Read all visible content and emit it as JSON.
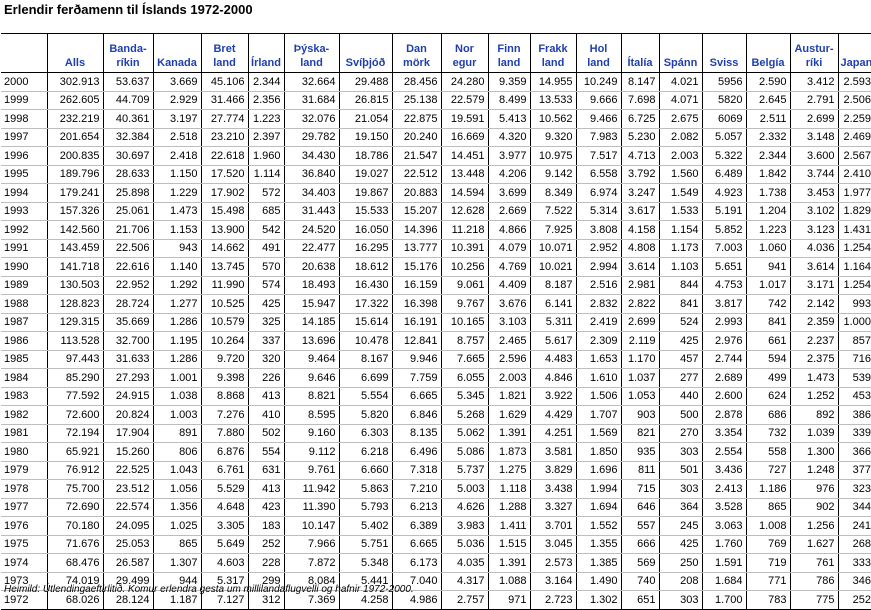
{
  "title": "Erlendir ferðamenn til Íslands 1972-2000",
  "columns": [
    {
      "l1": "",
      "l2": ""
    },
    {
      "l1": "",
      "l2": "Alls"
    },
    {
      "l1": "Banda-",
      "l2": "ríkin"
    },
    {
      "l1": "",
      "l2": "Kanada"
    },
    {
      "l1": "Bret",
      "l2": "land"
    },
    {
      "l1": "",
      "l2": "Írland"
    },
    {
      "l1": "Þýska-",
      "l2": "land"
    },
    {
      "l1": "",
      "l2": "Svíþjóð"
    },
    {
      "l1": "Dan",
      "l2": "mörk"
    },
    {
      "l1": "Nor",
      "l2": "egur"
    },
    {
      "l1": "Finn",
      "l2": "land"
    },
    {
      "l1": "Frakk",
      "l2": "land"
    },
    {
      "l1": "Hol",
      "l2": "land"
    },
    {
      "l1": "",
      "l2": "Ítalía"
    },
    {
      "l1": "",
      "l2": "Spánn"
    },
    {
      "l1": "",
      "l2": "Sviss"
    },
    {
      "l1": "",
      "l2": "Belgía"
    },
    {
      "l1": "Austur-",
      "l2": "ríki"
    },
    {
      "l1": "",
      "l2": "Japan"
    }
  ],
  "rows": [
    [
      "2000",
      "302.913",
      "53.637",
      "3.669",
      "45.106",
      "2.344",
      "32.664",
      "29.488",
      "28.456",
      "24.280",
      "9.359",
      "14.955",
      "10.249",
      "8.147",
      "4.021",
      "5956",
      "2.590",
      "3.412",
      "2.593"
    ],
    [
      "1999",
      "262.605",
      "44.709",
      "2.929",
      "31.466",
      "2.356",
      "31.684",
      "26.815",
      "25.138",
      "22.579",
      "8.499",
      "13.533",
      "9.666",
      "7.698",
      "4.071",
      "5820",
      "2.645",
      "2.791",
      "2.506"
    ],
    [
      "1998",
      "232.219",
      "40.361",
      "3.197",
      "27.774",
      "1.223",
      "32.076",
      "21.054",
      "22.875",
      "19.591",
      "5.413",
      "10.562",
      "9.466",
      "6.725",
      "2.675",
      "6069",
      "2.511",
      "2.699",
      "2.259"
    ],
    [
      "1997",
      "201.654",
      "32.384",
      "2.518",
      "23.210",
      "2.397",
      "29.782",
      "19.150",
      "20.240",
      "16.669",
      "4.320",
      "9.320",
      "7.983",
      "5.230",
      "2.082",
      "5.057",
      "2.332",
      "3.148",
      "2.469"
    ],
    [
      "1996",
      "200.835",
      "30.697",
      "2.418",
      "22.618",
      "1.960",
      "34.430",
      "18.786",
      "21.547",
      "14.451",
      "3.977",
      "10.975",
      "7.517",
      "4.713",
      "2.003",
      "5.322",
      "2.344",
      "3.600",
      "2.567"
    ],
    [
      "1995",
      "189.796",
      "28.633",
      "1.150",
      "17.520",
      "1.114",
      "36.840",
      "19.027",
      "22.512",
      "13.448",
      "4.206",
      "9.142",
      "6.558",
      "3.792",
      "1.560",
      "6.489",
      "1.842",
      "3.744",
      "2.410"
    ],
    [
      "1994",
      "179.241",
      "25.898",
      "1.229",
      "17.902",
      "572",
      "34.403",
      "19.867",
      "20.883",
      "14.594",
      "3.699",
      "8.349",
      "6.974",
      "3.247",
      "1.549",
      "4.923",
      "1.738",
      "3.453",
      "1.977"
    ],
    [
      "1993",
      "157.326",
      "25.061",
      "1.473",
      "15.498",
      "685",
      "31.443",
      "15.533",
      "15.207",
      "12.628",
      "2.669",
      "7.522",
      "5.314",
      "3.617",
      "1.533",
      "5.191",
      "1.204",
      "3.102",
      "1.829"
    ],
    [
      "1992",
      "142.560",
      "21.706",
      "1.153",
      "13.900",
      "542",
      "24.520",
      "16.050",
      "14.396",
      "11.218",
      "4.866",
      "7.925",
      "3.808",
      "4.158",
      "1.154",
      "5.852",
      "1.223",
      "3.123",
      "1.431"
    ],
    [
      "1991",
      "143.459",
      "22.506",
      "943",
      "14.662",
      "491",
      "22.477",
      "16.295",
      "13.777",
      "10.391",
      "4.079",
      "10.071",
      "2.952",
      "4.808",
      "1.173",
      "7.003",
      "1.060",
      "4.036",
      "1.254"
    ],
    [
      "1990",
      "141.718",
      "22.616",
      "1.140",
      "13.745",
      "570",
      "20.638",
      "18.612",
      "15.176",
      "10.256",
      "4.769",
      "10.021",
      "2.994",
      "3.614",
      "1.103",
      "5.651",
      "941",
      "3.614",
      "1.164"
    ],
    [
      "1989",
      "130.503",
      "22.952",
      "1.292",
      "11.990",
      "574",
      "18.493",
      "16.430",
      "16.159",
      "9.061",
      "4.409",
      "8.187",
      "2.516",
      "2.981",
      "844",
      "4.753",
      "1.017",
      "3.171",
      "1.254"
    ],
    [
      "1988",
      "128.823",
      "28.724",
      "1.277",
      "10.525",
      "425",
      "15.947",
      "17.322",
      "16.398",
      "9.767",
      "3.676",
      "6.141",
      "2.832",
      "2.822",
      "841",
      "3.817",
      "742",
      "2.142",
      "993"
    ],
    [
      "1987",
      "129.315",
      "35.669",
      "1.286",
      "10.579",
      "325",
      "14.185",
      "15.614",
      "16.191",
      "10.165",
      "3.103",
      "5.311",
      "2.419",
      "2.699",
      "524",
      "2.993",
      "841",
      "2.359",
      "1.000"
    ],
    [
      "1986",
      "113.528",
      "32.700",
      "1.195",
      "10.264",
      "337",
      "13.696",
      "10.478",
      "12.841",
      "8.757",
      "2.465",
      "5.617",
      "2.309",
      "2.119",
      "425",
      "2.976",
      "661",
      "2.237",
      "857"
    ],
    [
      "1985",
      "97.443",
      "31.633",
      "1.286",
      "9.720",
      "320",
      "9.464",
      "8.167",
      "9.946",
      "7.665",
      "2.596",
      "4.483",
      "1.653",
      "1.170",
      "457",
      "2.744",
      "594",
      "2.375",
      "716"
    ],
    [
      "1984",
      "85.290",
      "27.293",
      "1.001",
      "9.398",
      "226",
      "9.646",
      "6.699",
      "7.759",
      "6.055",
      "2.003",
      "4.846",
      "1.610",
      "1.037",
      "277",
      "2.689",
      "499",
      "1.473",
      "539"
    ],
    [
      "1983",
      "77.592",
      "24.915",
      "1.038",
      "8.868",
      "413",
      "8.821",
      "5.554",
      "6.665",
      "5.345",
      "1.821",
      "3.922",
      "1.506",
      "1.053",
      "440",
      "2.600",
      "624",
      "1.252",
      "453"
    ],
    [
      "1982",
      "72.600",
      "20.824",
      "1.003",
      "7.276",
      "410",
      "8.595",
      "5.820",
      "6.846",
      "5.268",
      "1.629",
      "4.429",
      "1.707",
      "903",
      "500",
      "2.878",
      "686",
      "892",
      "386"
    ],
    [
      "1981",
      "72.194",
      "17.904",
      "891",
      "7.880",
      "502",
      "9.160",
      "6.303",
      "8.135",
      "5.062",
      "1.391",
      "4.251",
      "1.569",
      "821",
      "270",
      "3.354",
      "732",
      "1.039",
      "339"
    ],
    [
      "1980",
      "65.921",
      "15.260",
      "806",
      "6.876",
      "554",
      "9.112",
      "6.218",
      "6.496",
      "5.086",
      "1.873",
      "3.581",
      "1.850",
      "935",
      "303",
      "2.554",
      "558",
      "1.300",
      "366"
    ],
    [
      "1979",
      "76.912",
      "22.525",
      "1.043",
      "6.761",
      "631",
      "9.761",
      "6.660",
      "7.318",
      "5.737",
      "1.275",
      "3.829",
      "1.696",
      "811",
      "501",
      "3.436",
      "727",
      "1.248",
      "377"
    ],
    [
      "1978",
      "75.700",
      "23.512",
      "1.056",
      "5.529",
      "413",
      "11.942",
      "5.863",
      "7.210",
      "5.003",
      "1.118",
      "3.438",
      "1.994",
      "715",
      "303",
      "2.413",
      "1.186",
      "976",
      "323"
    ],
    [
      "1977",
      "72.690",
      "22.574",
      "1.356",
      "4.648",
      "423",
      "11.390",
      "5.793",
      "6.213",
      "4.626",
      "1.288",
      "3.327",
      "1.694",
      "646",
      "364",
      "3.528",
      "865",
      "902",
      "344"
    ],
    [
      "1976",
      "70.180",
      "24.095",
      "1.025",
      "3.305",
      "183",
      "10.147",
      "5.402",
      "6.389",
      "3.983",
      "1.411",
      "3.701",
      "1.552",
      "557",
      "245",
      "3.063",
      "1.008",
      "1.256",
      "241"
    ],
    [
      "1975",
      "71.676",
      "25.053",
      "865",
      "5.649",
      "252",
      "7.966",
      "5.751",
      "6.665",
      "5.036",
      "1.515",
      "3.045",
      "1.355",
      "666",
      "425",
      "1.760",
      "769",
      "1.627",
      "268"
    ],
    [
      "1974",
      "68.476",
      "26.587",
      "1.307",
      "4.603",
      "228",
      "7.872",
      "5.348",
      "6.173",
      "4.035",
      "1.391",
      "2.573",
      "1.385",
      "569",
      "250",
      "1.591",
      "719",
      "761",
      "333"
    ],
    [
      "1973",
      "74.019",
      "29.499",
      "944",
      "5.317",
      "299",
      "8.084",
      "5.441",
      "7.040",
      "4.317",
      "1.088",
      "3.164",
      "1.490",
      "740",
      "208",
      "1.684",
      "771",
      "786",
      "346"
    ],
    [
      "1972",
      "68.026",
      "28.124",
      "1.187",
      "7.127",
      "312",
      "7.369",
      "4.258",
      "4.986",
      "2.757",
      "971",
      "2.723",
      "1.302",
      "651",
      "303",
      "1.700",
      "783",
      "775",
      "252"
    ]
  ],
  "footnote": "Heimild: Útlendingaeftirlitið. Komur erlendra gesta um millilandaflugvelli og hafnir 1972-2000."
}
